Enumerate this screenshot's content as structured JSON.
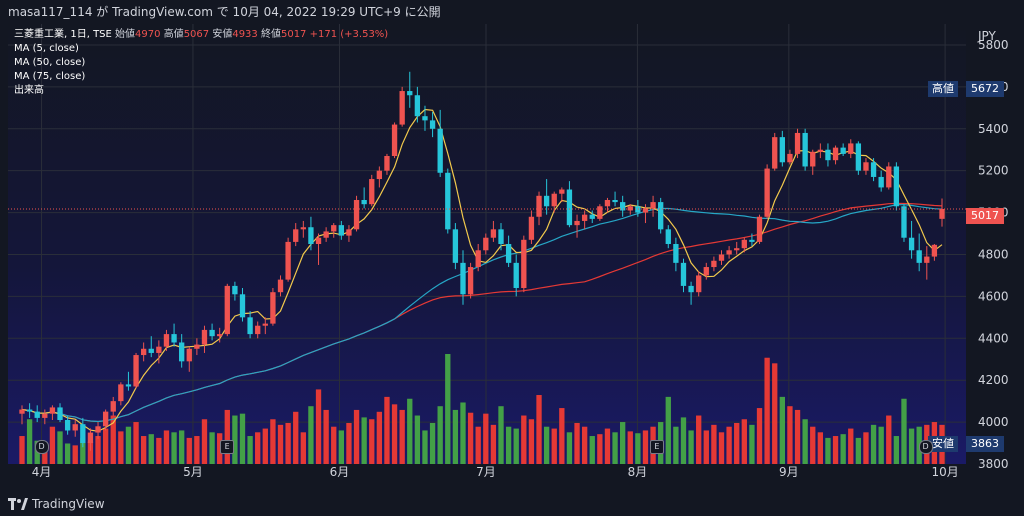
{
  "header": {
    "caption": "masa117_114 が TradingView.com で 10月 04, 2022 19:29 UTC+9 に公開"
  },
  "footer": {
    "brand": "TradingView"
  },
  "legend": {
    "symbol": "三菱重工業, 1日, TSE",
    "open_label": "始値",
    "open": "4970",
    "high_label": "高値",
    "high": "5067",
    "low_label": "安値",
    "low": "4933",
    "close_label": "終値",
    "close": "5017",
    "change": "+171 (+3.53%)",
    "ma5": "MA (5, close)",
    "ma50": "MA (50, close)",
    "ma75": "MA (75, close)",
    "volume": "出来高"
  },
  "axis": {
    "currency": "JPY",
    "high_tag_label": "高値",
    "high_tag_value": "5672",
    "low_tag_label": "安値",
    "low_tag_value": "3863",
    "last_price": "5017",
    "partial_tick": "3800"
  },
  "events": [
    {
      "kind": "D",
      "shape": "circle",
      "date": "2022-04-01"
    },
    {
      "kind": "E",
      "shape": "square",
      "date": "2022-05-09"
    },
    {
      "kind": "E",
      "shape": "square",
      "date": "2022-08-05"
    },
    {
      "kind": "D",
      "shape": "circle",
      "date": "2022-09-29"
    }
  ],
  "colors": {
    "background": "#131722",
    "gradient_bottom": "#1a1a66",
    "up": "#ef5350",
    "down": "#26c6da",
    "vol_up": "#e53935",
    "vol_down": "#43a047",
    "ma5": "#f2c94c",
    "ma50": "#26a6c6",
    "ma75": "#e53935",
    "grid": "#2a2e39"
  },
  "chart_data": {
    "type": "candlestick",
    "title": "三菱重工業, 1日, TSE",
    "ylim": [
      3800,
      5900
    ],
    "y_ticks": [
      4000,
      4200,
      4400,
      4600,
      4800,
      5000,
      5200,
      5400,
      5600,
      5800
    ],
    "x_month_ticks": [
      {
        "label": "4月",
        "date": "2022-04-01"
      },
      {
        "label": "5月",
        "date": "2022-05-02"
      },
      {
        "label": "6月",
        "date": "2022-06-01"
      },
      {
        "label": "7月",
        "date": "2022-07-01"
      },
      {
        "label": "8月",
        "date": "2022-08-01"
      },
      {
        "label": "9月",
        "date": "2022-09-01"
      },
      {
        "label": "10月",
        "date": "2022-10-03"
      }
    ],
    "x_start_date": "2022-03-28",
    "ohlc": [
      [
        4040,
        4080,
        3990,
        4060
      ],
      [
        4060,
        4090,
        4020,
        4050
      ],
      [
        4050,
        4080,
        4000,
        4020
      ],
      [
        4020,
        4060,
        3990,
        4040
      ],
      [
        4040,
        4080,
        4010,
        4070
      ],
      [
        4070,
        4090,
        4000,
        4010
      ],
      [
        4010,
        4030,
        3940,
        3960
      ],
      [
        3960,
        4010,
        3930,
        3990
      ],
      [
        3990,
        4020,
        3880,
        3900
      ],
      [
        3900,
        3970,
        3863,
        3950
      ],
      [
        3950,
        4000,
        3920,
        3980
      ],
      [
        3980,
        4060,
        3960,
        4050
      ],
      [
        4050,
        4120,
        4030,
        4100
      ],
      [
        4100,
        4190,
        4080,
        4180
      ],
      [
        4180,
        4240,
        4150,
        4170
      ],
      [
        4170,
        4330,
        4160,
        4320
      ],
      [
        4320,
        4380,
        4290,
        4350
      ],
      [
        4350,
        4410,
        4310,
        4330
      ],
      [
        4330,
        4390,
        4280,
        4360
      ],
      [
        4360,
        4440,
        4340,
        4420
      ],
      [
        4420,
        4470,
        4360,
        4380
      ],
      [
        4380,
        4420,
        4260,
        4290
      ],
      [
        4290,
        4360,
        4240,
        4350
      ],
      [
        4350,
        4400,
        4320,
        4370
      ],
      [
        4370,
        4460,
        4330,
        4440
      ],
      [
        4440,
        4470,
        4390,
        4410
      ],
      [
        4410,
        4450,
        4380,
        4420
      ],
      [
        4420,
        4660,
        4410,
        4650
      ],
      [
        4650,
        4670,
        4580,
        4610
      ],
      [
        4610,
        4640,
        4480,
        4500
      ],
      [
        4500,
        4530,
        4400,
        4420
      ],
      [
        4420,
        4480,
        4400,
        4460
      ],
      [
        4460,
        4500,
        4420,
        4470
      ],
      [
        4470,
        4640,
        4460,
        4620
      ],
      [
        4620,
        4700,
        4600,
        4680
      ],
      [
        4680,
        4880,
        4670,
        4860
      ],
      [
        4860,
        4950,
        4840,
        4920
      ],
      [
        4920,
        4960,
        4880,
        4930
      ],
      [
        4930,
        4980,
        4820,
        4850
      ],
      [
        4850,
        4900,
        4750,
        4880
      ],
      [
        4880,
        4930,
        4860,
        4910
      ],
      [
        4910,
        4950,
        4880,
        4940
      ],
      [
        4940,
        4960,
        4870,
        4890
      ],
      [
        4890,
        4940,
        4860,
        4920
      ],
      [
        4920,
        5080,
        4910,
        5060
      ],
      [
        5060,
        5120,
        5020,
        5040
      ],
      [
        5040,
        5180,
        5030,
        5160
      ],
      [
        5160,
        5220,
        5120,
        5200
      ],
      [
        5200,
        5280,
        5180,
        5270
      ],
      [
        5270,
        5430,
        5260,
        5420
      ],
      [
        5420,
        5600,
        5410,
        5580
      ],
      [
        5580,
        5672,
        5500,
        5560
      ],
      [
        5560,
        5600,
        5430,
        5460
      ],
      [
        5460,
        5510,
        5390,
        5440
      ],
      [
        5440,
        5480,
        5360,
        5400
      ],
      [
        5400,
        5490,
        5170,
        5190
      ],
      [
        5190,
        5210,
        4900,
        4920
      ],
      [
        4920,
        4950,
        4730,
        4760
      ],
      [
        4760,
        4820,
        4560,
        4610
      ],
      [
        4610,
        4760,
        4590,
        4740
      ],
      [
        4740,
        4850,
        4720,
        4820
      ],
      [
        4820,
        4900,
        4800,
        4880
      ],
      [
        4880,
        4960,
        4860,
        4920
      ],
      [
        4920,
        4950,
        4820,
        4850
      ],
      [
        4850,
        4890,
        4740,
        4760
      ],
      [
        4760,
        4800,
        4600,
        4640
      ],
      [
        4640,
        4890,
        4620,
        4870
      ],
      [
        4870,
        5010,
        4850,
        4980
      ],
      [
        4980,
        5100,
        4940,
        5080
      ],
      [
        5080,
        5160,
        4990,
        5030
      ],
      [
        5030,
        5100,
        5000,
        5090
      ],
      [
        5090,
        5120,
        5050,
        5110
      ],
      [
        5110,
        5150,
        4930,
        4940
      ],
      [
        4940,
        4990,
        4880,
        4960
      ],
      [
        4960,
        5010,
        4920,
        4990
      ],
      [
        4990,
        5010,
        4950,
        4970
      ],
      [
        4970,
        5040,
        4960,
        5030
      ],
      [
        5030,
        5070,
        5000,
        5060
      ],
      [
        5060,
        5100,
        5030,
        5050
      ],
      [
        5050,
        5080,
        4980,
        5010
      ],
      [
        5010,
        5040,
        4990,
        5030
      ],
      [
        5030,
        5060,
        4980,
        5000
      ],
      [
        5000,
        5040,
        4950,
        5020
      ],
      [
        5020,
        5080,
        4980,
        5050
      ],
      [
        5050,
        5070,
        4900,
        4920
      ],
      [
        4920,
        4940,
        4830,
        4850
      ],
      [
        4850,
        4880,
        4720,
        4760
      ],
      [
        4760,
        4780,
        4620,
        4650
      ],
      [
        4650,
        4670,
        4560,
        4620
      ],
      [
        4620,
        4720,
        4600,
        4700
      ],
      [
        4700,
        4760,
        4680,
        4740
      ],
      [
        4740,
        4790,
        4720,
        4770
      ],
      [
        4770,
        4820,
        4750,
        4800
      ],
      [
        4800,
        4840,
        4780,
        4820
      ],
      [
        4820,
        4860,
        4800,
        4830
      ],
      [
        4830,
        4880,
        4810,
        4870
      ],
      [
        4870,
        4900,
        4840,
        4860
      ],
      [
        4860,
        4990,
        4850,
        4980
      ],
      [
        4980,
        5230,
        4970,
        5210
      ],
      [
        5210,
        5380,
        5200,
        5360
      ],
      [
        5360,
        5390,
        5220,
        5240
      ],
      [
        5240,
        5300,
        5230,
        5280
      ],
      [
        5280,
        5400,
        5260,
        5380
      ],
      [
        5380,
        5400,
        5200,
        5220
      ],
      [
        5220,
        5300,
        5180,
        5290
      ],
      [
        5290,
        5330,
        5260,
        5300
      ],
      [
        5300,
        5330,
        5220,
        5250
      ],
      [
        5250,
        5320,
        5230,
        5310
      ],
      [
        5310,
        5330,
        5270,
        5280
      ],
      [
        5280,
        5350,
        5260,
        5330
      ],
      [
        5330,
        5340,
        5180,
        5200
      ],
      [
        5200,
        5260,
        5180,
        5240
      ],
      [
        5240,
        5260,
        5150,
        5170
      ],
      [
        5170,
        5200,
        5100,
        5120
      ],
      [
        5120,
        5240,
        5110,
        5220
      ],
      [
        5220,
        5240,
        5010,
        5030
      ],
      [
        5030,
        5040,
        4860,
        4880
      ],
      [
        4880,
        4960,
        4780,
        4820
      ],
      [
        4820,
        4900,
        4720,
        4760
      ],
      [
        4760,
        4840,
        4680,
        4790
      ],
      [
        4790,
        4850,
        4770,
        4846
      ],
      [
        4970,
        5067,
        4933,
        5017
      ]
    ],
    "volume": [
      30,
      48,
      25,
      18,
      40,
      35,
      22,
      20,
      28,
      24,
      30,
      38,
      52,
      35,
      40,
      45,
      30,
      32,
      28,
      36,
      34,
      36,
      28,
      30,
      48,
      34,
      33,
      58,
      52,
      54,
      30,
      34,
      38,
      48,
      42,
      44,
      56,
      34,
      62,
      80,
      58,
      40,
      36,
      44,
      58,
      50,
      48,
      56,
      72,
      64,
      58,
      70,
      52,
      36,
      44,
      62,
      118,
      58,
      66,
      55,
      40,
      54,
      42,
      62,
      40,
      38,
      52,
      48,
      74,
      40,
      38,
      60,
      34,
      44,
      40,
      30,
      32,
      38,
      34,
      45,
      35,
      33,
      36,
      40,
      45,
      72,
      40,
      50,
      36,
      52,
      36,
      42,
      34,
      40,
      44,
      48,
      42,
      60,
      114,
      108,
      72,
      62,
      58,
      48,
      40,
      34,
      28,
      30,
      32,
      38,
      28,
      34,
      42,
      40,
      52,
      30,
      70,
      38,
      40,
      42,
      45,
      42
    ]
  }
}
